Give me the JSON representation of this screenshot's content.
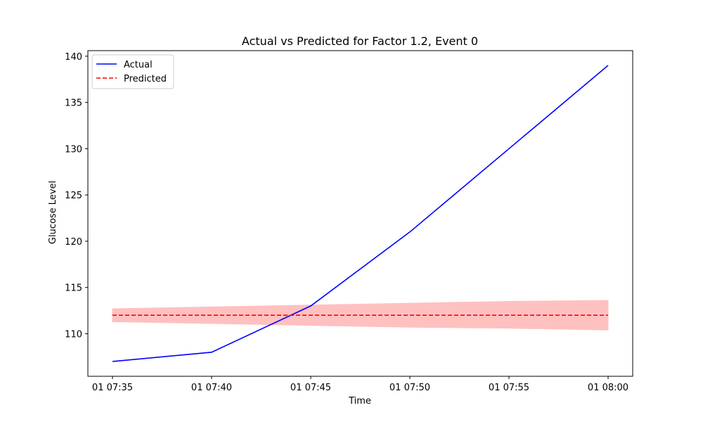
{
  "chart_data": {
    "type": "line",
    "title": "Actual vs Predicted for Factor 1.2, Event 0",
    "xlabel": "Time",
    "ylabel": "Glucose Level",
    "x": [
      "01 07:35",
      "01 07:40",
      "01 07:45",
      "01 07:50",
      "01 07:55",
      "01 08:00"
    ],
    "x_ticks": [
      "01 07:35",
      "01 07:40",
      "01 07:45",
      "01 07:50",
      "01 07:55",
      "01 08:00"
    ],
    "y_ticks": [
      110,
      115,
      120,
      125,
      130,
      135,
      140
    ],
    "ylim": [
      105.4,
      140.6
    ],
    "grid": false,
    "legend_position": "upper-left",
    "series": [
      {
        "name": "Actual",
        "style": "solid",
        "color": "#0000ff",
        "values": [
          107,
          108,
          113,
          121,
          130,
          139
        ]
      },
      {
        "name": "Predicted",
        "style": "dashed",
        "color": "#ff0000",
        "values": [
          112,
          112,
          112,
          112,
          112,
          112
        ],
        "band_lower": [
          111.3,
          111.1,
          110.9,
          110.7,
          110.6,
          110.4
        ],
        "band_upper": [
          112.7,
          112.9,
          113.1,
          113.3,
          113.5,
          113.6
        ],
        "band_color": "#ffc0c0"
      }
    ]
  }
}
